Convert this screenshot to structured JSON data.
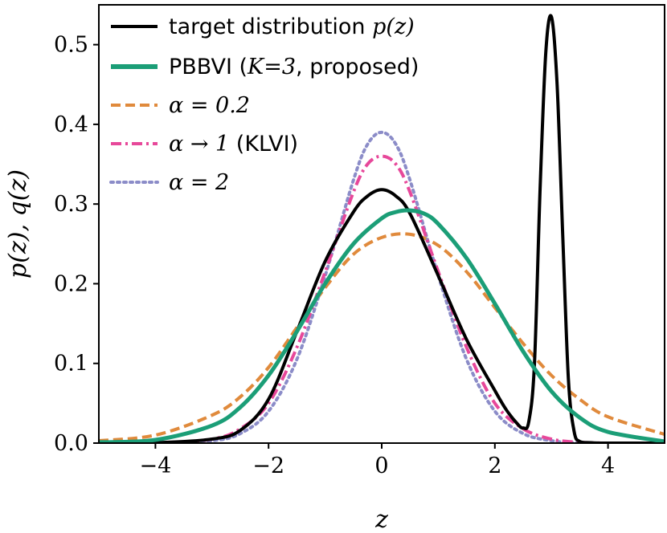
{
  "chart_data": {
    "type": "line",
    "title": "",
    "xlabel": "z",
    "ylabel": "p(z), q(z)",
    "xlim": [
      -5,
      5
    ],
    "ylim": [
      0,
      0.55
    ],
    "xticks": [
      -4,
      -2,
      0,
      2,
      4
    ],
    "xtick_labels": [
      "−4",
      "−2",
      "0",
      "2",
      "4"
    ],
    "yticks": [
      0.0,
      0.1,
      0.2,
      0.3,
      0.4,
      0.5
    ],
    "ytick_labels": [
      "0.0",
      "0.1",
      "0.2",
      "0.3",
      "0.4",
      "0.5"
    ],
    "grid": false,
    "legend_position": "top-left",
    "series": [
      {
        "name": "target distribution p(z)",
        "color": "#000000",
        "style": "solid",
        "x": [
          -5,
          -4,
          -3,
          -2.5,
          -2,
          -1.5,
          -1,
          -0.5,
          -0.25,
          0,
          0.25,
          0.5,
          1,
          1.5,
          2,
          2.2,
          2.4,
          2.5,
          2.6,
          2.7,
          2.8,
          2.9,
          3.0,
          3.1,
          3.2,
          3.3,
          3.4,
          3.5,
          3.7,
          4,
          5
        ],
        "values": [
          0.0,
          0.0005,
          0.005,
          0.016,
          0.055,
          0.14,
          0.228,
          0.29,
          0.31,
          0.318,
          0.31,
          0.288,
          0.21,
          0.13,
          0.066,
          0.042,
          0.024,
          0.019,
          0.027,
          0.1,
          0.32,
          0.49,
          0.535,
          0.45,
          0.26,
          0.08,
          0.015,
          0.002,
          0.0005,
          0.0,
          0.0
        ]
      },
      {
        "name": "PBBVI (K=3, proposed)",
        "color": "#1b9e77",
        "style": "solid",
        "x": [
          -5,
          -4,
          -3,
          -2.5,
          -2,
          -1.5,
          -1,
          -0.5,
          0,
          0.25,
          0.5,
          0.75,
          1,
          1.5,
          2,
          2.5,
          3,
          3.5,
          4,
          5
        ],
        "values": [
          0.001,
          0.004,
          0.022,
          0.045,
          0.085,
          0.14,
          0.2,
          0.25,
          0.282,
          0.29,
          0.292,
          0.288,
          0.275,
          0.232,
          0.175,
          0.115,
          0.065,
          0.032,
          0.014,
          0.002
        ]
      },
      {
        "name": "α = 0.2",
        "color": "#e08a3c",
        "style": "dashed",
        "x": [
          -5,
          -4,
          -3,
          -2.5,
          -2,
          -1.5,
          -1,
          -0.5,
          0,
          0.5,
          1,
          1.5,
          2,
          2.5,
          3,
          3.5,
          4,
          5
        ],
        "values": [
          0.003,
          0.01,
          0.035,
          0.058,
          0.095,
          0.145,
          0.195,
          0.237,
          0.258,
          0.262,
          0.248,
          0.215,
          0.17,
          0.125,
          0.085,
          0.055,
          0.033,
          0.011
        ]
      },
      {
        "name": "α → 1 (KLVI)",
        "color": "#e7489a",
        "style": "dashdot",
        "x": [
          -5,
          -4,
          -3,
          -2.5,
          -2,
          -1.5,
          -1,
          -0.5,
          -0.25,
          0,
          0.25,
          0.5,
          1,
          1.5,
          2,
          2.5,
          3,
          3.5,
          4,
          5
        ],
        "values": [
          0.0,
          0.0,
          0.005,
          0.018,
          0.05,
          0.12,
          0.215,
          0.315,
          0.35,
          0.36,
          0.35,
          0.315,
          0.215,
          0.12,
          0.05,
          0.018,
          0.005,
          0.001,
          0.0,
          0.0
        ]
      },
      {
        "name": "α = 2",
        "color": "#8b8cc8",
        "style": "dotted",
        "x": [
          -5,
          -4,
          -3,
          -2.5,
          -2,
          -1.5,
          -1,
          -0.5,
          -0.25,
          0,
          0.25,
          0.5,
          1,
          1.5,
          2,
          2.5,
          3,
          3.5,
          4,
          5
        ],
        "values": [
          0.0,
          0.0,
          0.003,
          0.012,
          0.04,
          0.105,
          0.21,
          0.33,
          0.375,
          0.39,
          0.375,
          0.33,
          0.21,
          0.105,
          0.04,
          0.012,
          0.003,
          0.0,
          0.0,
          0.0
        ]
      }
    ]
  },
  "legend": [
    {
      "text": "target distribution ",
      "math": "p(z)"
    },
    {
      "text": "PBBVI (",
      "math": "K=3",
      "suffix": ", proposed)"
    },
    {
      "text": "",
      "math": "α = 0.2"
    },
    {
      "text": "",
      "math": "α → 1",
      "suffix": " (KLVI)"
    },
    {
      "text": "",
      "math": "α = 2"
    }
  ]
}
